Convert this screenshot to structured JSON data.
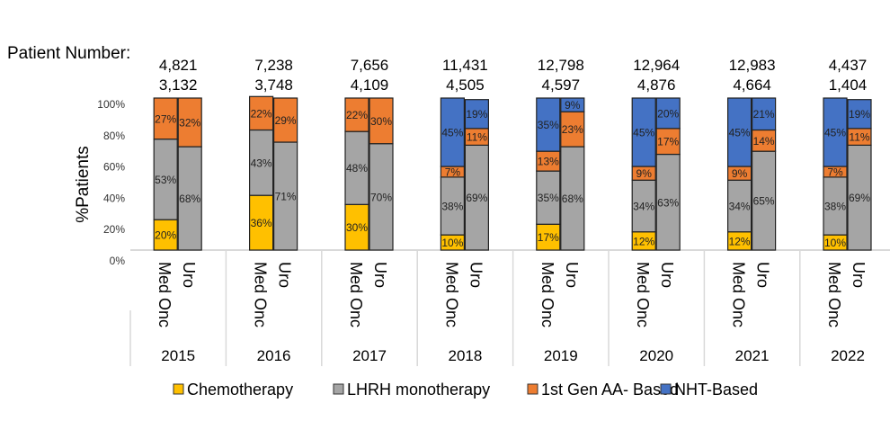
{
  "chart_data": {
    "type": "bar",
    "stacked": true,
    "patient_number_label": "Patient Number:",
    "ylabel": "%Patients",
    "ylim": [
      0,
      100
    ],
    "yticks": [
      "0%",
      "20%",
      "40%",
      "60%",
      "80%",
      "100%"
    ],
    "grid": false,
    "legend_position": "bottom",
    "subcategories": [
      "Med Onc",
      "Uro"
    ],
    "years": [
      "2015",
      "2016",
      "2017",
      "2018",
      "2019",
      "2020",
      "2021",
      "2022"
    ],
    "series": [
      {
        "name": "Chemotherapy",
        "color": "#FFC000"
      },
      {
        "name": "LHRH monotherapy",
        "color": "#A5A5A5"
      },
      {
        "name": "1st Gen AA- Based",
        "color": "#ED7D31"
      },
      {
        "name": "NHT-Based",
        "color": "#4472C4"
      }
    ],
    "groups": [
      {
        "year": "2015",
        "bars": [
          {
            "sub": "Med Onc",
            "patients": "4,821",
            "values": [
              20,
              53,
              27,
              0
            ]
          },
          {
            "sub": "Uro",
            "patients": "3,132",
            "values": [
              0,
              68,
              32,
              0
            ]
          }
        ]
      },
      {
        "year": "2016",
        "bars": [
          {
            "sub": "Med Onc",
            "patients": "7,238",
            "values": [
              36,
              43,
              22,
              0
            ]
          },
          {
            "sub": "Uro",
            "patients": "3,748",
            "values": [
              0,
              71,
              29,
              0
            ]
          }
        ]
      },
      {
        "year": "2017",
        "bars": [
          {
            "sub": "Med Onc",
            "patients": "7,656",
            "values": [
              30,
              48,
              22,
              0
            ]
          },
          {
            "sub": "Uro",
            "patients": "4,109",
            "values": [
              0,
              70,
              30,
              0
            ]
          }
        ]
      },
      {
        "year": "2018",
        "bars": [
          {
            "sub": "Med Onc",
            "patients": "11,431",
            "values": [
              10,
              38,
              7,
              45
            ]
          },
          {
            "sub": "Uro",
            "patients": "4,505",
            "values": [
              0,
              69,
              11,
              19
            ]
          }
        ]
      },
      {
        "year": "2019",
        "bars": [
          {
            "sub": "Med Onc",
            "patients": "12,798",
            "values": [
              17,
              35,
              13,
              35
            ]
          },
          {
            "sub": "Uro",
            "patients": "4,597",
            "values": [
              0,
              68,
              23,
              9
            ]
          }
        ]
      },
      {
        "year": "2020",
        "bars": [
          {
            "sub": "Med Onc",
            "patients": "12,964",
            "values": [
              12,
              34,
              9,
              45
            ]
          },
          {
            "sub": "Uro",
            "patients": "4,876",
            "values": [
              0,
              63,
              17,
              20
            ]
          }
        ]
      },
      {
        "year": "2021",
        "bars": [
          {
            "sub": "Med Onc",
            "patients": "12,983",
            "values": [
              12,
              34,
              9,
              45
            ]
          },
          {
            "sub": "Uro",
            "patients": "4,664",
            "values": [
              0,
              65,
              14,
              21
            ]
          }
        ]
      },
      {
        "year": "2022",
        "bars": [
          {
            "sub": "Med Onc",
            "patients": "4,437",
            "values": [
              10,
              38,
              7,
              45
            ]
          },
          {
            "sub": "Uro",
            "patients": "1,404",
            "values": [
              0,
              69,
              11,
              19
            ]
          }
        ]
      }
    ]
  }
}
